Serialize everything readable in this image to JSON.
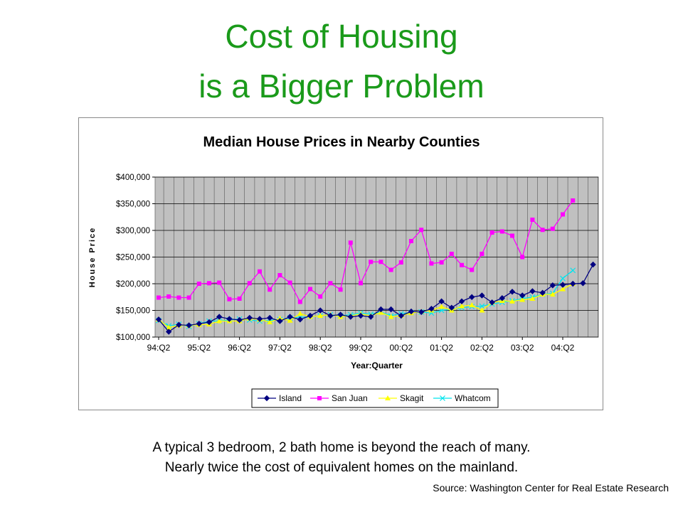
{
  "slide": {
    "title_line1": "Cost of Housing",
    "title_line2": "is a Bigger Problem",
    "caption_line1": "A typical 3 bedroom, 2 bath home is beyond the reach of many.",
    "caption_line2": "Nearly twice the cost of equivalent homes on the mainland.",
    "source": "Source:  Washington Center for Real Estate Research",
    "title_color": "#1a9a1a"
  },
  "chart_data": {
    "type": "line",
    "title": "Median House Prices in Nearby Counties",
    "xlabel": "Year:Quarter",
    "ylabel": "House Price",
    "ylim": [
      100000,
      400000
    ],
    "y_ticks": [
      100000,
      150000,
      200000,
      250000,
      300000,
      350000,
      400000
    ],
    "y_tick_labels": [
      "$100,000",
      "$150,000",
      "$200,000",
      "$250,000",
      "$300,000",
      "$350,000",
      "$400,000"
    ],
    "x_tick_labels": [
      "94:Q2",
      "95:Q2",
      "96:Q2",
      "97:Q2",
      "98:Q2",
      "99:Q2",
      "00:Q2",
      "01:Q2",
      "02:Q2",
      "03:Q2",
      "04:Q2"
    ],
    "grid": true,
    "plot_background": "#c0c0c0",
    "legend_position": "bottom",
    "series": [
      {
        "name": "Island",
        "color": "#000080",
        "marker": "diamond",
        "values": [
          133000,
          110000,
          123000,
          122000,
          125000,
          128000,
          138000,
          134000,
          132000,
          136000,
          134000,
          136000,
          130000,
          138000,
          133000,
          140000,
          150000,
          140000,
          142000,
          138000,
          140000,
          138000,
          152000,
          152000,
          140000,
          148000,
          147000,
          153000,
          167000,
          155000,
          167000,
          175000,
          178000,
          165000,
          173000,
          185000,
          178000,
          186000,
          183000,
          197000,
          198000,
          200000,
          201000,
          236000
        ]
      },
      {
        "name": "San Juan",
        "color": "#ff00ff",
        "marker": "square",
        "values": [
          174000,
          176000,
          174000,
          174000,
          200000,
          201000,
          202000,
          171000,
          172000,
          201000,
          223000,
          189000,
          216000,
          202000,
          166000,
          190000,
          176000,
          201000,
          189000,
          277000,
          201000,
          241000,
          241000,
          226000,
          240000,
          280000,
          301000,
          238000,
          240000,
          256000,
          235000,
          226000,
          256000,
          296000,
          298000,
          290000,
          250000,
          320000,
          301000,
          303000,
          330000,
          356000
        ]
      },
      {
        "name": "Skagit",
        "color": "#ffff00",
        "marker": "triangle",
        "values": [
          133000,
          118000,
          122000,
          122000,
          123000,
          124000,
          130000,
          130000,
          130000,
          135000,
          133000,
          128000,
          135000,
          131000,
          144000,
          138000,
          140000,
          142000,
          138000,
          140000,
          143000,
          140000,
          146000,
          138000,
          140000,
          145000,
          148000,
          150000,
          157000,
          150000,
          158000,
          160000,
          150000,
          165000,
          168000,
          167000,
          170000,
          172000,
          180000,
          180000,
          190000,
          200000
        ]
      },
      {
        "name": "Whatcom",
        "color": "#00e5ee",
        "marker": "x",
        "values": [
          131000,
          121000,
          124000,
          120000,
          125000,
          130000,
          130000,
          132000,
          134000,
          132000,
          130000,
          131000,
          133000,
          136000,
          137000,
          138000,
          140000,
          142000,
          140000,
          142000,
          145000,
          143000,
          147000,
          140000,
          144000,
          146000,
          147000,
          145000,
          150000,
          152000,
          155000,
          157000,
          158000,
          162000,
          165000,
          168000,
          172000,
          175000,
          180000,
          182000,
          210000,
          225000
        ]
      }
    ]
  }
}
